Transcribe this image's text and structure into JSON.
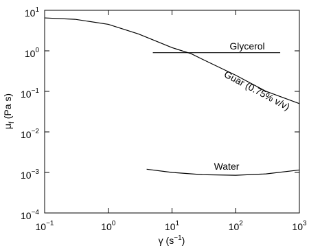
{
  "chart_data": {
    "type": "line",
    "xlabel": [
      "γ (s",
      "−1",
      ")"
    ],
    "ylabel": [
      "μ",
      "f",
      " (Pa s)"
    ],
    "xscale": "log",
    "yscale": "log",
    "xlim": [
      0.1,
      1000
    ],
    "ylim": [
      0.0001,
      10
    ],
    "xticks": [
      {
        "value": 0.1,
        "label": "10",
        "exponent": "−1"
      },
      {
        "value": 1,
        "label": "10",
        "exponent": "0"
      },
      {
        "value": 10,
        "label": "10",
        "exponent": "1"
      },
      {
        "value": 100,
        "label": "10",
        "exponent": "2"
      },
      {
        "value": 1000,
        "label": "10",
        "exponent": "3"
      }
    ],
    "yticks": [
      {
        "value": 0.0001,
        "label": "10",
        "exponent": "−4"
      },
      {
        "value": 0.001,
        "label": "10",
        "exponent": "−3"
      },
      {
        "value": 0.01,
        "label": "10",
        "exponent": "−2"
      },
      {
        "value": 0.1,
        "label": "10",
        "exponent": "−1"
      },
      {
        "value": 1,
        "label": "10",
        "exponent": "0"
      },
      {
        "value": 10,
        "label": "10",
        "exponent": "1"
      }
    ],
    "series": [
      {
        "name": "Guar (0.75% v/v)",
        "color": "#000000",
        "x": [
          0.1,
          0.3,
          1,
          3,
          10,
          20,
          30,
          100,
          300,
          1000
        ],
        "values": [
          6.5,
          6,
          4.5,
          2.6,
          1.2,
          0.85,
          0.62,
          0.25,
          0.1,
          0.05
        ]
      },
      {
        "name": "Glycerol",
        "color": "#000000",
        "x": [
          5,
          500
        ],
        "values": [
          0.9,
          0.9
        ]
      },
      {
        "name": "Water",
        "color": "#000000",
        "x": [
          4,
          10,
          30,
          100,
          300,
          1000
        ],
        "values": [
          0.0012,
          0.001,
          0.00088,
          0.00085,
          0.00092,
          0.00115
        ]
      }
    ]
  }
}
